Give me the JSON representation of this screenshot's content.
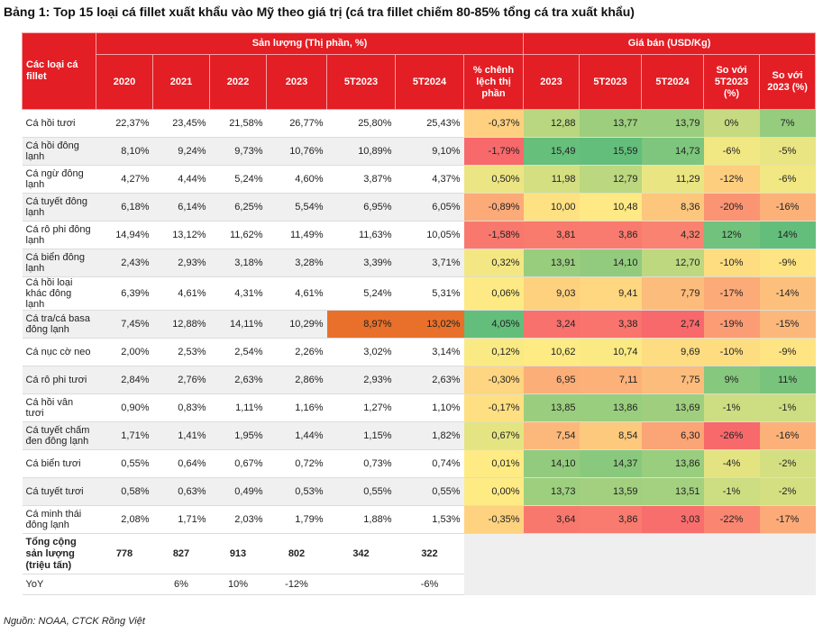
{
  "title": "Bảng 1: Top 15 loại cá fillet xuất khẩu vào Mỹ theo giá trị (cá tra fillet chiếm 80-85% tổng cá tra xuất khẩu)",
  "header": {
    "row_header": "Các loại cá fillet",
    "volume_group": "Sản lượng (Thị phần, %)",
    "price_group": "Giá bán (USD/Kg)",
    "volume_cols": [
      "2020",
      "2021",
      "2022",
      "2023",
      "5T2023",
      "5T2024"
    ],
    "diff_col": "% chênh lệch thị phần",
    "price_cols": [
      "2023",
      "5T2023",
      "5T2024"
    ],
    "pct_cols": [
      "So với 5T2023 (%)",
      "So với 2023 (%)"
    ]
  },
  "rows": [
    {
      "name": "Cá hồi tươi",
      "v": [
        "22,37%",
        "23,45%",
        "21,58%",
        "26,77%",
        "25,80%",
        "25,43%"
      ],
      "d": "-0,37%",
      "p": [
        "12,88",
        "13,77",
        "13,79"
      ],
      "c": [
        "0%",
        "7%"
      ]
    },
    {
      "name": "Cá hồi đông lạnh",
      "v": [
        "8,10%",
        "9,24%",
        "9,73%",
        "10,76%",
        "10,89%",
        "9,10%"
      ],
      "d": "-1,79%",
      "p": [
        "15,49",
        "15,59",
        "14,73"
      ],
      "c": [
        "-6%",
        "-5%"
      ]
    },
    {
      "name": "Cá ngừ đông lạnh",
      "v": [
        "4,27%",
        "4,44%",
        "5,24%",
        "4,60%",
        "3,87%",
        "4,37%"
      ],
      "d": "0,50%",
      "p": [
        "11,98",
        "12,79",
        "11,29"
      ],
      "c": [
        "-12%",
        "-6%"
      ]
    },
    {
      "name": "Cá tuyết đông lạnh",
      "v": [
        "6,18%",
        "6,14%",
        "6,25%",
        "5,54%",
        "6,95%",
        "6,05%"
      ],
      "d": "-0,89%",
      "p": [
        "10,00",
        "10,48",
        "8,36"
      ],
      "c": [
        "-20%",
        "-16%"
      ]
    },
    {
      "name": "Cá rô phi đông lạnh",
      "v": [
        "14,94%",
        "13,12%",
        "11,62%",
        "11,49%",
        "11,63%",
        "10,05%"
      ],
      "d": "-1,58%",
      "p": [
        "3,81",
        "3,86",
        "4,32"
      ],
      "c": [
        "12%",
        "14%"
      ]
    },
    {
      "name": "Cá biển đông lạnh",
      "v": [
        "2,43%",
        "2,93%",
        "3,18%",
        "3,28%",
        "3,39%",
        "3,71%"
      ],
      "d": "0,32%",
      "p": [
        "13,91",
        "14,10",
        "12,70"
      ],
      "c": [
        "-10%",
        "-9%"
      ]
    },
    {
      "name": "Cá hồi loại khác đông lạnh",
      "v": [
        "6,39%",
        "4,61%",
        "4,31%",
        "4,61%",
        "5,24%",
        "5,31%"
      ],
      "d": "0,06%",
      "p": [
        "9,03",
        "9,41",
        "7,79"
      ],
      "c": [
        "-17%",
        "-14%"
      ]
    },
    {
      "name": "Cá tra/cá basa đông lạnh",
      "v": [
        "7,45%",
        "12,88%",
        "14,11%",
        "10,29%",
        "8,97%",
        "13,02%"
      ],
      "d": "4,05%",
      "p": [
        "3,24",
        "3,38",
        "2,74"
      ],
      "c": [
        "-19%",
        "-15%"
      ]
    },
    {
      "name": "Cá nục cờ neo",
      "v": [
        "2,00%",
        "2,53%",
        "2,54%",
        "2,26%",
        "3,02%",
        "3,14%"
      ],
      "d": "0,12%",
      "p": [
        "10,62",
        "10,74",
        "9,69"
      ],
      "c": [
        "-10%",
        "-9%"
      ]
    },
    {
      "name": "Cá rô phi tươi",
      "v": [
        "2,84%",
        "2,76%",
        "2,63%",
        "2,86%",
        "2,93%",
        "2,63%"
      ],
      "d": "-0,30%",
      "p": [
        "6,95",
        "7,11",
        "7,75"
      ],
      "c": [
        "9%",
        "11%"
      ]
    },
    {
      "name": "Cá hồi vân tươi",
      "v": [
        "0,90%",
        "0,83%",
        "1,11%",
        "1,16%",
        "1,27%",
        "1,10%"
      ],
      "d": "-0,17%",
      "p": [
        "13,85",
        "13,86",
        "13,69"
      ],
      "c": [
        "-1%",
        "-1%"
      ]
    },
    {
      "name": "Cá tuyết chấm đen đông lạnh",
      "v": [
        "1,71%",
        "1,41%",
        "1,95%",
        "1,44%",
        "1,15%",
        "1,82%"
      ],
      "d": "0,67%",
      "p": [
        "7,54",
        "8,54",
        "6,30"
      ],
      "c": [
        "-26%",
        "-16%"
      ]
    },
    {
      "name": "Cá biển tươi",
      "v": [
        "0,55%",
        "0,64%",
        "0,67%",
        "0,72%",
        "0,73%",
        "0,74%"
      ],
      "d": "0,01%",
      "p": [
        "14,10",
        "14,37",
        "13,86"
      ],
      "c": [
        "-4%",
        "-2%"
      ]
    },
    {
      "name": "Cá tuyết tươi",
      "v": [
        "0,58%",
        "0,63%",
        "0,49%",
        "0,53%",
        "0,55%",
        "0,55%"
      ],
      "d": "0,00%",
      "p": [
        "13,73",
        "13,59",
        "13,51"
      ],
      "c": [
        "-1%",
        "-2%"
      ]
    },
    {
      "name": "Cá minh thái đông lạnh",
      "v": [
        "2,08%",
        "1,71%",
        "2,03%",
        "1,79%",
        "1,88%",
        "1,53%"
      ],
      "d": "-0,35%",
      "p": [
        "3,64",
        "3,86",
        "3,03"
      ],
      "c": [
        "-22%",
        "-17%"
      ]
    }
  ],
  "total": {
    "label": "Tổng cộng sản lượng (triệu tấn)",
    "values": [
      "778",
      "827",
      "913",
      "802",
      "342",
      "322"
    ]
  },
  "yoy": {
    "label": "YoY",
    "values": [
      "",
      "6%",
      "10%",
      "-12%",
      "",
      "-6%"
    ]
  },
  "source": "Nguồn: NOAA, CTCK Rồng Việt",
  "colors": {
    "header_red": "#e31e24",
    "highlight_orange": "#e8702a",
    "scale_green": "#63be7b",
    "scale_yellow": "#ffeb84",
    "scale_red": "#f8696b"
  }
}
